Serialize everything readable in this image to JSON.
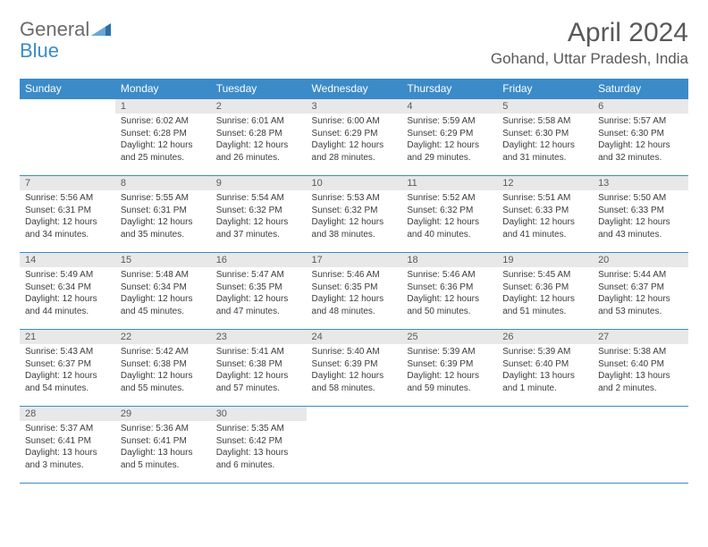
{
  "brand": {
    "general": "General",
    "blue": "Blue"
  },
  "header": {
    "month_title": "April 2024",
    "location": "Gohand, Uttar Pradesh, India"
  },
  "styling": {
    "header_bg": "#3b8bc9",
    "header_fg": "#ffffff",
    "daynum_bg": "#e8e8e8",
    "daynum_fg": "#5a5a5a",
    "border_color": "#3b8bc9",
    "body_text_color": "#3c3c3c",
    "title_color": "#595959",
    "font_family": "Arial",
    "daynum_fontsize": 11,
    "cell_fontsize": 10,
    "th_fontsize": 12,
    "title_fontsize": 30,
    "location_fontsize": 17
  },
  "weekdays": [
    "Sunday",
    "Monday",
    "Tuesday",
    "Wednesday",
    "Thursday",
    "Friday",
    "Saturday"
  ],
  "weeks": [
    [
      {
        "day": "",
        "sunrise": "",
        "sunset": "",
        "daylight": ""
      },
      {
        "day": "1",
        "sunrise": "Sunrise: 6:02 AM",
        "sunset": "Sunset: 6:28 PM",
        "daylight": "Daylight: 12 hours and 25 minutes."
      },
      {
        "day": "2",
        "sunrise": "Sunrise: 6:01 AM",
        "sunset": "Sunset: 6:28 PM",
        "daylight": "Daylight: 12 hours and 26 minutes."
      },
      {
        "day": "3",
        "sunrise": "Sunrise: 6:00 AM",
        "sunset": "Sunset: 6:29 PM",
        "daylight": "Daylight: 12 hours and 28 minutes."
      },
      {
        "day": "4",
        "sunrise": "Sunrise: 5:59 AM",
        "sunset": "Sunset: 6:29 PM",
        "daylight": "Daylight: 12 hours and 29 minutes."
      },
      {
        "day": "5",
        "sunrise": "Sunrise: 5:58 AM",
        "sunset": "Sunset: 6:30 PM",
        "daylight": "Daylight: 12 hours and 31 minutes."
      },
      {
        "day": "6",
        "sunrise": "Sunrise: 5:57 AM",
        "sunset": "Sunset: 6:30 PM",
        "daylight": "Daylight: 12 hours and 32 minutes."
      }
    ],
    [
      {
        "day": "7",
        "sunrise": "Sunrise: 5:56 AM",
        "sunset": "Sunset: 6:31 PM",
        "daylight": "Daylight: 12 hours and 34 minutes."
      },
      {
        "day": "8",
        "sunrise": "Sunrise: 5:55 AM",
        "sunset": "Sunset: 6:31 PM",
        "daylight": "Daylight: 12 hours and 35 minutes."
      },
      {
        "day": "9",
        "sunrise": "Sunrise: 5:54 AM",
        "sunset": "Sunset: 6:32 PM",
        "daylight": "Daylight: 12 hours and 37 minutes."
      },
      {
        "day": "10",
        "sunrise": "Sunrise: 5:53 AM",
        "sunset": "Sunset: 6:32 PM",
        "daylight": "Daylight: 12 hours and 38 minutes."
      },
      {
        "day": "11",
        "sunrise": "Sunrise: 5:52 AM",
        "sunset": "Sunset: 6:32 PM",
        "daylight": "Daylight: 12 hours and 40 minutes."
      },
      {
        "day": "12",
        "sunrise": "Sunrise: 5:51 AM",
        "sunset": "Sunset: 6:33 PM",
        "daylight": "Daylight: 12 hours and 41 minutes."
      },
      {
        "day": "13",
        "sunrise": "Sunrise: 5:50 AM",
        "sunset": "Sunset: 6:33 PM",
        "daylight": "Daylight: 12 hours and 43 minutes."
      }
    ],
    [
      {
        "day": "14",
        "sunrise": "Sunrise: 5:49 AM",
        "sunset": "Sunset: 6:34 PM",
        "daylight": "Daylight: 12 hours and 44 minutes."
      },
      {
        "day": "15",
        "sunrise": "Sunrise: 5:48 AM",
        "sunset": "Sunset: 6:34 PM",
        "daylight": "Daylight: 12 hours and 45 minutes."
      },
      {
        "day": "16",
        "sunrise": "Sunrise: 5:47 AM",
        "sunset": "Sunset: 6:35 PM",
        "daylight": "Daylight: 12 hours and 47 minutes."
      },
      {
        "day": "17",
        "sunrise": "Sunrise: 5:46 AM",
        "sunset": "Sunset: 6:35 PM",
        "daylight": "Daylight: 12 hours and 48 minutes."
      },
      {
        "day": "18",
        "sunrise": "Sunrise: 5:46 AM",
        "sunset": "Sunset: 6:36 PM",
        "daylight": "Daylight: 12 hours and 50 minutes."
      },
      {
        "day": "19",
        "sunrise": "Sunrise: 5:45 AM",
        "sunset": "Sunset: 6:36 PM",
        "daylight": "Daylight: 12 hours and 51 minutes."
      },
      {
        "day": "20",
        "sunrise": "Sunrise: 5:44 AM",
        "sunset": "Sunset: 6:37 PM",
        "daylight": "Daylight: 12 hours and 53 minutes."
      }
    ],
    [
      {
        "day": "21",
        "sunrise": "Sunrise: 5:43 AM",
        "sunset": "Sunset: 6:37 PM",
        "daylight": "Daylight: 12 hours and 54 minutes."
      },
      {
        "day": "22",
        "sunrise": "Sunrise: 5:42 AM",
        "sunset": "Sunset: 6:38 PM",
        "daylight": "Daylight: 12 hours and 55 minutes."
      },
      {
        "day": "23",
        "sunrise": "Sunrise: 5:41 AM",
        "sunset": "Sunset: 6:38 PM",
        "daylight": "Daylight: 12 hours and 57 minutes."
      },
      {
        "day": "24",
        "sunrise": "Sunrise: 5:40 AM",
        "sunset": "Sunset: 6:39 PM",
        "daylight": "Daylight: 12 hours and 58 minutes."
      },
      {
        "day": "25",
        "sunrise": "Sunrise: 5:39 AM",
        "sunset": "Sunset: 6:39 PM",
        "daylight": "Daylight: 12 hours and 59 minutes."
      },
      {
        "day": "26",
        "sunrise": "Sunrise: 5:39 AM",
        "sunset": "Sunset: 6:40 PM",
        "daylight": "Daylight: 13 hours and 1 minute."
      },
      {
        "day": "27",
        "sunrise": "Sunrise: 5:38 AM",
        "sunset": "Sunset: 6:40 PM",
        "daylight": "Daylight: 13 hours and 2 minutes."
      }
    ],
    [
      {
        "day": "28",
        "sunrise": "Sunrise: 5:37 AM",
        "sunset": "Sunset: 6:41 PM",
        "daylight": "Daylight: 13 hours and 3 minutes."
      },
      {
        "day": "29",
        "sunrise": "Sunrise: 5:36 AM",
        "sunset": "Sunset: 6:41 PM",
        "daylight": "Daylight: 13 hours and 5 minutes."
      },
      {
        "day": "30",
        "sunrise": "Sunrise: 5:35 AM",
        "sunset": "Sunset: 6:42 PM",
        "daylight": "Daylight: 13 hours and 6 minutes."
      },
      {
        "day": "",
        "sunrise": "",
        "sunset": "",
        "daylight": ""
      },
      {
        "day": "",
        "sunrise": "",
        "sunset": "",
        "daylight": ""
      },
      {
        "day": "",
        "sunrise": "",
        "sunset": "",
        "daylight": ""
      },
      {
        "day": "",
        "sunrise": "",
        "sunset": "",
        "daylight": ""
      }
    ]
  ]
}
